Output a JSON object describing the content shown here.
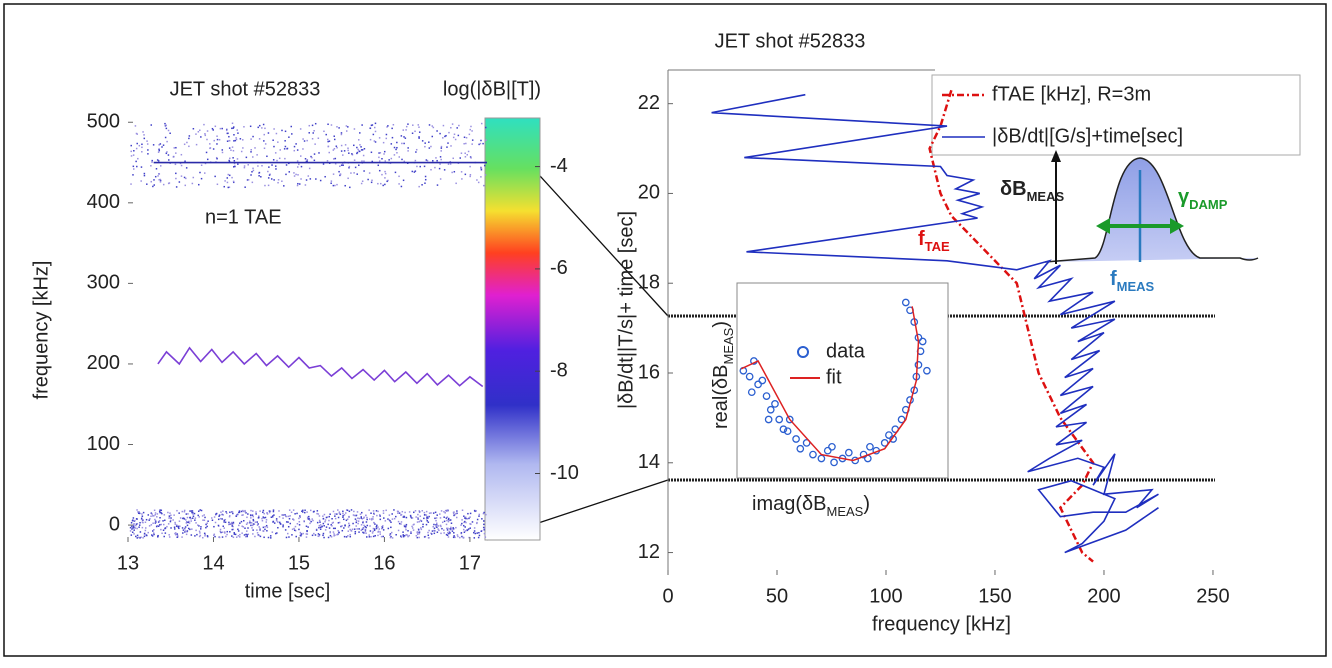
{
  "chart_data": [
    {
      "type": "line",
      "title": "JET shot #52833",
      "xlabel": "time [sec]",
      "ylabel": "frequency [kHz]",
      "annotation": "n=1 TAE",
      "xlim": [
        13,
        17.2
      ],
      "ylim": [
        -21,
        509
      ],
      "xticks": [
        13,
        14,
        15,
        16,
        17
      ],
      "yticks": [
        0,
        100,
        200,
        300,
        400,
        500
      ],
      "series": [
        {
          "color": "#7b3fd6",
          "x": [
            13.35,
            13.45,
            13.6,
            13.72,
            13.85,
            13.98,
            14.1,
            14.23,
            14.36,
            14.5,
            14.62,
            14.75,
            14.88,
            15.0,
            15.12,
            15.25,
            15.38,
            15.5,
            15.62,
            15.75,
            15.88,
            16.0,
            16.12,
            16.25,
            16.38,
            16.5,
            16.62,
            16.75,
            16.88,
            17.0,
            17.15
          ],
          "values": [
            200,
            215,
            200,
            220,
            203,
            218,
            202,
            215,
            200,
            213,
            198,
            210,
            196,
            208,
            195,
            198,
            185,
            195,
            182,
            193,
            180,
            192,
            178,
            190,
            176,
            188,
            174,
            186,
            173,
            184,
            172
          ]
        },
        {
          "color": "#2a2aa8",
          "x": [
            13.3,
            17.2
          ],
          "values": [
            450,
            450
          ]
        }
      ],
      "colorbar": {
        "label": "log(|δB|[T])",
        "lim": [
          -11.3,
          -3.05
        ],
        "ticks": [
          -4,
          -6,
          -8,
          -10
        ]
      }
    },
    {
      "type": "line",
      "title": "JET shot #52833",
      "xlabel": "frequency [kHz]",
      "ylabel": "|δB/dt||T/s|+ time [sec]",
      "xlim": [
        0,
        262.4
      ],
      "ylim": [
        11.5,
        22.75
      ],
      "xticks": [
        0,
        50,
        100,
        150,
        200,
        250
      ],
      "yticks": [
        12,
        14,
        16,
        18,
        20,
        22
      ],
      "series": [
        {
          "name": "fTAE [kHz], R=3m",
          "color": "#dd1111",
          "dashed": true,
          "x": [
            130,
            125,
            120,
            125,
            130,
            140,
            150,
            160,
            165,
            170,
            180,
            195,
            190,
            180,
            185,
            190,
            195
          ],
          "values": [
            22.3,
            21.5,
            21,
            20,
            19.5,
            19,
            18.5,
            18,
            17,
            16,
            15,
            14,
            13.5,
            13,
            12.5,
            12,
            11.8
          ]
        },
        {
          "name": "|δB/dt|[G/s]+time[sec]",
          "color": "#1f2fbf",
          "dashed": false,
          "x": [
            63,
            20,
            128,
            35,
            125,
            128,
            140,
            132,
            143,
            133,
            144,
            135,
            142,
            36,
            128,
            160,
            175,
            168,
            180,
            170,
            185,
            175,
            195,
            180,
            205,
            185,
            205,
            188,
            200,
            185,
            198,
            182,
            195,
            180,
            195,
            180,
            192,
            178,
            192,
            178,
            190,
            175,
            165,
            188,
            200,
            195,
            205,
            200,
            222,
            215,
            225,
            210,
            195,
            180,
            170,
            185,
            205,
            200,
            190,
            182,
            210,
            225
          ],
          "values": [
            22.2,
            21.8,
            21.5,
            20.8,
            20.6,
            20.4,
            20.3,
            20.1,
            20.0,
            19.85,
            19.7,
            19.55,
            19.45,
            18.7,
            18.5,
            18.3,
            18.5,
            18.1,
            18.4,
            17.9,
            18.1,
            17.6,
            17.8,
            17.3,
            17.6,
            17.0,
            17.2,
            16.7,
            16.9,
            16.3,
            16.5,
            15.9,
            16.1,
            15.5,
            15.7,
            15.1,
            15.3,
            14.8,
            14.9,
            14.4,
            14.5,
            14.1,
            13.8,
            14.1,
            13.9,
            13.5,
            14.2,
            13.3,
            13.4,
            13.0,
            13.3,
            12.9,
            12.9,
            12.8,
            13.4,
            13.6,
            13.2,
            12.7,
            12.2,
            12.0,
            12.5,
            13.0
          ]
        }
      ],
      "tae_label": [
        "f",
        "TAE"
      ],
      "schematic": {
        "amplitude": [
          "δB",
          "MEAS"
        ],
        "damping": [
          "γ",
          "DAMP"
        ],
        "frequency": [
          "f",
          "MEAS"
        ]
      }
    },
    {
      "type": "scatter",
      "xlabel": [
        "imag(δB",
        "MEAS",
        ")"
      ],
      "ylabel": [
        "real(δB",
        "MEAS",
        ")"
      ],
      "xlim": [
        0,
        1
      ],
      "ylim": [
        0,
        1
      ],
      "series": [
        {
          "name": "data",
          "marker": "o",
          "color": "#2b5fd0",
          "x": [
            0.03,
            0.06,
            0.08,
            0.1,
            0.12,
            0.14,
            0.16,
            0.18,
            0.2,
            0.22,
            0.25,
            0.28,
            0.3,
            0.33,
            0.36,
            0.4,
            0.43,
            0.46,
            0.5,
            0.53,
            0.56,
            0.6,
            0.63,
            0.66,
            0.7,
            0.72,
            0.75,
            0.78,
            0.8,
            0.82,
            0.84,
            0.85,
            0.86,
            0.87,
            0.86,
            0.84,
            0.82,
            0.8,
            0.9,
            0.88,
            0.07,
            0.15,
            0.24,
            0.45,
            0.62,
            0.74
          ],
          "values": [
            0.55,
            0.52,
            0.6,
            0.48,
            0.5,
            0.42,
            0.35,
            0.38,
            0.3,
            0.25,
            0.3,
            0.2,
            0.15,
            0.18,
            0.12,
            0.1,
            0.14,
            0.08,
            0.1,
            0.13,
            0.09,
            0.12,
            0.16,
            0.14,
            0.18,
            0.22,
            0.25,
            0.3,
            0.35,
            0.4,
            0.45,
            0.52,
            0.58,
            0.65,
            0.72,
            0.8,
            0.86,
            0.9,
            0.55,
            0.7,
            0.44,
            0.3,
            0.24,
            0.16,
            0.1,
            0.2
          ]
        },
        {
          "name": "fit",
          "marker": "line",
          "color": "#dd2222",
          "x": [
            0.02,
            0.1,
            0.15,
            0.25,
            0.4,
            0.55,
            0.7,
            0.8,
            0.85,
            0.86,
            0.83
          ],
          "values": [
            0.56,
            0.6,
            0.5,
            0.3,
            0.12,
            0.09,
            0.15,
            0.3,
            0.5,
            0.7,
            0.88
          ]
        }
      ]
    }
  ]
}
